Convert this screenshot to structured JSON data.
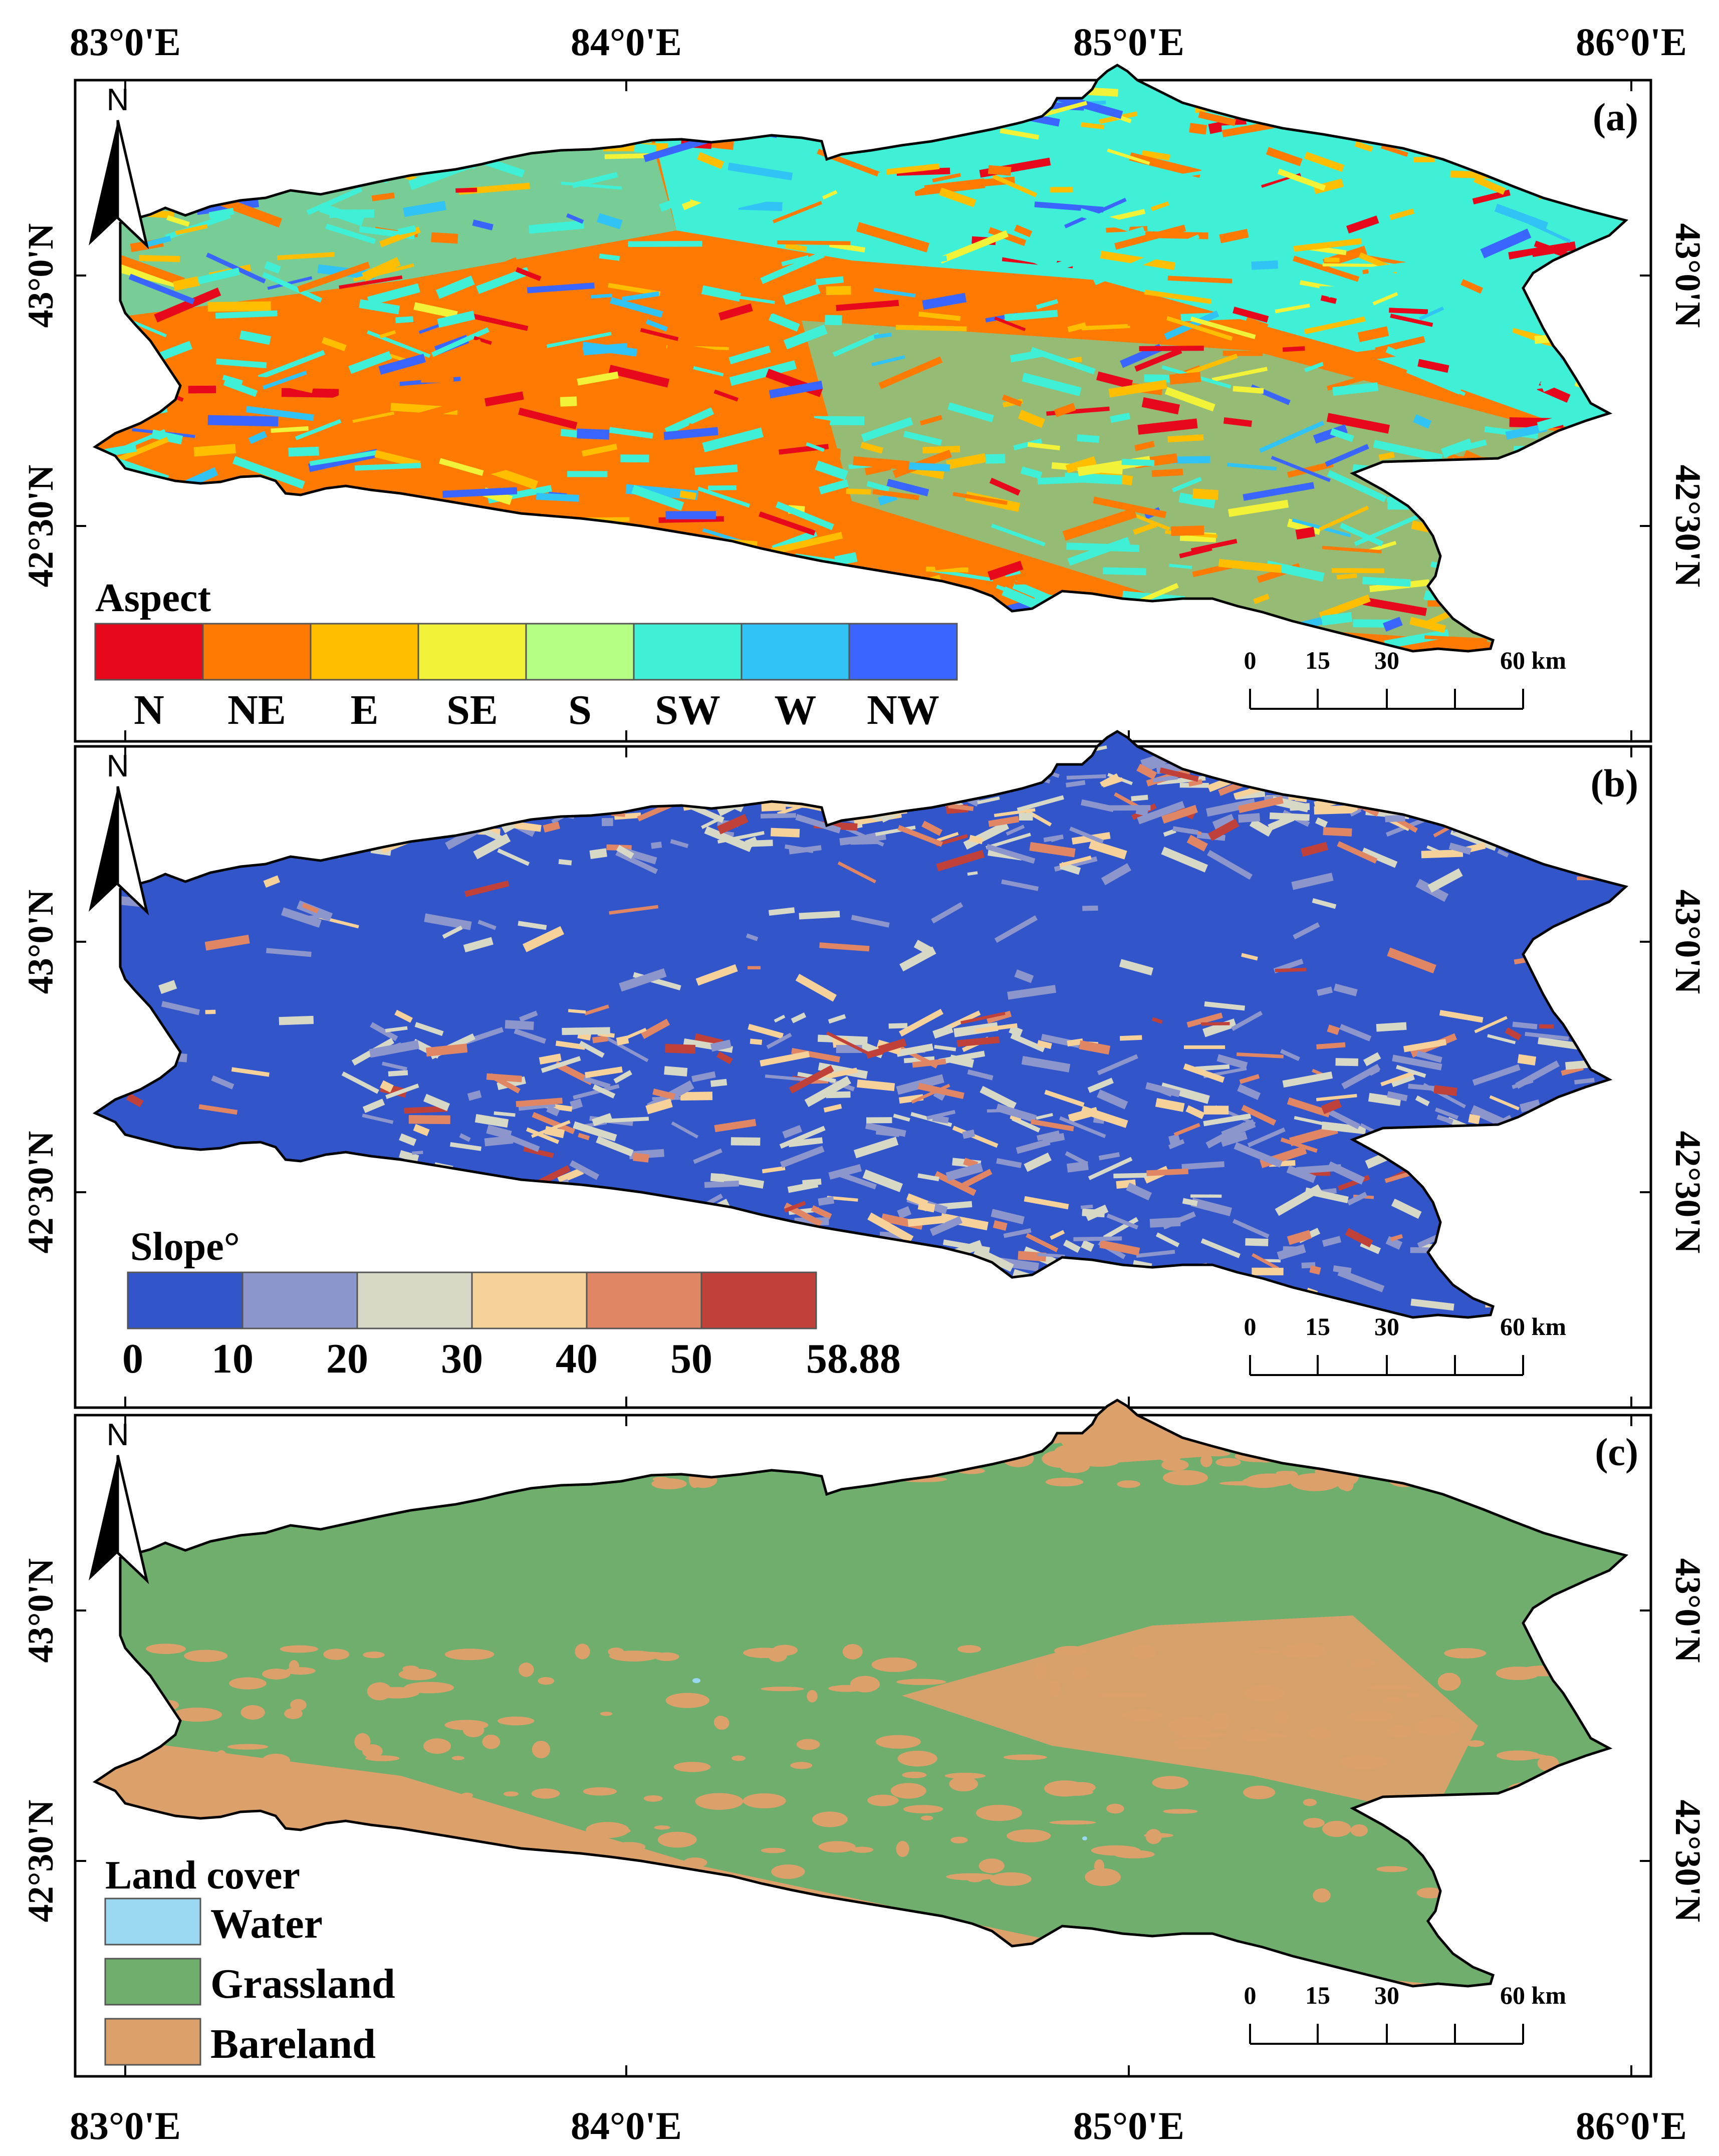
{
  "axes": {
    "top_longitudes": [
      "83°0'E",
      "84°0'E",
      "85°0'E",
      "86°0'E"
    ],
    "bottom_longitudes": [
      "83°0'E",
      "84°0'E",
      "85°0'E",
      "86°0'E"
    ],
    "latitudes": [
      "43°0'N",
      "42°30'N"
    ]
  },
  "panels": [
    {
      "id": "a",
      "label": "(a)",
      "north": "N",
      "legend_title": "Aspect",
      "legend_items": [
        {
          "label": "N",
          "color": "#e8081c"
        },
        {
          "label": "NE",
          "color": "#ff7a00"
        },
        {
          "label": "E",
          "color": "#ffbf00"
        },
        {
          "label": "SE",
          "color": "#f2f238"
        },
        {
          "label": "S",
          "color": "#b6ff85"
        },
        {
          "label": "SW",
          "color": "#3ff0d6"
        },
        {
          "label": "W",
          "color": "#32c3f5"
        },
        {
          "label": "NW",
          "color": "#3a66ff"
        }
      ],
      "scale": {
        "ticks": [
          "0",
          "15",
          "30",
          "60 km"
        ]
      }
    },
    {
      "id": "b",
      "label": "(b)",
      "north": "N",
      "legend_title": "Slope°",
      "legend_colors": [
        "#3256c9",
        "#8d96cc",
        "#d8d8c6",
        "#f6d29a",
        "#e08665",
        "#c0413a"
      ],
      "legend_breaks": [
        "0",
        "10",
        "20",
        "30",
        "40",
        "50",
        "58.88"
      ],
      "scale": {
        "ticks": [
          "0",
          "15",
          "30",
          "60 km"
        ]
      }
    },
    {
      "id": "c",
      "label": "(c)",
      "north": "N",
      "legend_title": "Land cover",
      "legend_items": [
        {
          "label": "Water",
          "color": "#99d8f0"
        },
        {
          "label": "Grassland",
          "color": "#70ae6e"
        },
        {
          "label": "Bareland",
          "color": "#dca06b"
        }
      ],
      "scale": {
        "ticks": [
          "0",
          "15",
          "30",
          "60 km"
        ]
      }
    }
  ]
}
